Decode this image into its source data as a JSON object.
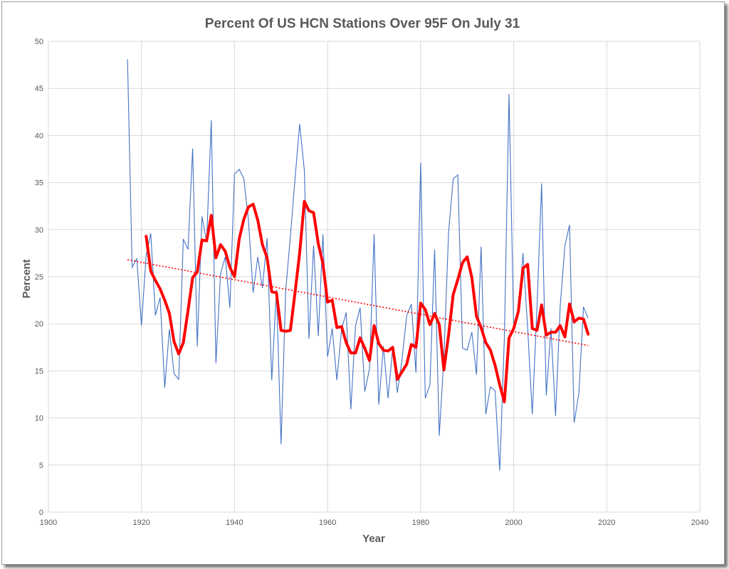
{
  "chart_data": {
    "type": "line",
    "title": "Percent Of US HCN Stations Over 95F On July 31",
    "xlabel": "Year",
    "ylabel": "Percent",
    "xlim": [
      1900,
      2040
    ],
    "ylim": [
      0,
      50
    ],
    "x_ticks": [
      "1900",
      "1920",
      "1940",
      "1960",
      "1980",
      "2000",
      "2020",
      "2040"
    ],
    "y_ticks": [
      "0",
      "5",
      "10",
      "15",
      "20",
      "25",
      "30",
      "35",
      "40",
      "45",
      "50"
    ],
    "grid": true,
    "legend": "none",
    "colors": {
      "annual": "#4472c4",
      "moving_average": "#ff0000",
      "trend": "#ff0000",
      "grid": "#d9d9d9"
    },
    "series": [
      {
        "role": "annual",
        "style": "thin-line",
        "x": [
          1917,
          1918,
          1919,
          1920,
          1921,
          1922,
          1923,
          1924,
          1925,
          1926,
          1927,
          1928,
          1929,
          1930,
          1931,
          1932,
          1933,
          1934,
          1935,
          1936,
          1937,
          1938,
          1939,
          1940,
          1941,
          1942,
          1943,
          1944,
          1945,
          1946,
          1947,
          1948,
          1949,
          1950,
          1951,
          1952,
          1953,
          1954,
          1955,
          1956,
          1957,
          1958,
          1959,
          1960,
          1961,
          1962,
          1963,
          1964,
          1965,
          1966,
          1967,
          1968,
          1969,
          1970,
          1971,
          1972,
          1973,
          1974,
          1975,
          1976,
          1977,
          1978,
          1979,
          1980,
          1981,
          1982,
          1983,
          1984,
          1985,
          1986,
          1987,
          1988,
          1989,
          1990,
          1991,
          1992,
          1993,
          1994,
          1995,
          1996,
          1997,
          1998,
          1999,
          2000,
          2001,
          2002,
          2003,
          2004,
          2005,
          2006,
          2007,
          2008,
          2009,
          2010,
          2011,
          2012,
          2013,
          2014,
          2015,
          2016
        ],
        "values": [
          48.1,
          26.0,
          26.9,
          19.8,
          27.3,
          29.6,
          20.9,
          22.8,
          13.2,
          19.4,
          14.7,
          14.1,
          29.0,
          27.9,
          38.6,
          17.6,
          31.4,
          28.7,
          41.6,
          15.8,
          25.3,
          27.1,
          21.7,
          35.9,
          36.4,
          35.4,
          31.0,
          23.3,
          27.1,
          23.8,
          29.1,
          14.0,
          23.6,
          7.2,
          23.5,
          29.3,
          35.4,
          41.2,
          36.3,
          18.4,
          28.3,
          18.7,
          29.5,
          16.5,
          19.5,
          14.0,
          19.4,
          21.2,
          10.9,
          19.8,
          21.7,
          12.8,
          15.2,
          29.5,
          11.4,
          17.6,
          12.1,
          17.4,
          12.7,
          16.2,
          20.9,
          22.1,
          14.8,
          37.1,
          12.1,
          13.5,
          27.9,
          8.1,
          16.4,
          29.7,
          35.4,
          35.8,
          17.4,
          17.2,
          19.1,
          14.6,
          28.2,
          10.4,
          13.3,
          12.9,
          4.4,
          18.6,
          44.4,
          19.5,
          20.9,
          27.5,
          19.5,
          10.4,
          21.8,
          34.9,
          12.4,
          19.5,
          10.2,
          21.9,
          28.3,
          30.5,
          9.5,
          12.6,
          21.8,
          20.6
        ]
      },
      {
        "role": "moving_average",
        "style": "thick-line",
        "x": [
          1921,
          1922,
          1923,
          1924,
          1925,
          1926,
          1927,
          1928,
          1929,
          1930,
          1931,
          1932,
          1933,
          1934,
          1935,
          1936,
          1937,
          1938,
          1939,
          1940,
          1941,
          1942,
          1943,
          1944,
          1945,
          1946,
          1947,
          1948,
          1949,
          1950,
          1951,
          1952,
          1953,
          1954,
          1955,
          1956,
          1957,
          1958,
          1959,
          1960,
          1961,
          1962,
          1963,
          1964,
          1965,
          1966,
          1967,
          1968,
          1969,
          1970,
          1971,
          1972,
          1973,
          1974,
          1975,
          1976,
          1977,
          1978,
          1979,
          1980,
          1981,
          1982,
          1983,
          1984,
          1985,
          1986,
          1987,
          1988,
          1989,
          1990,
          1991,
          1992,
          1993,
          1994,
          1995,
          1996,
          1997,
          1998,
          1999,
          2000,
          2001,
          2002,
          2003,
          2004,
          2005,
          2006,
          2007,
          2008,
          2009,
          2010,
          2011,
          2012,
          2013,
          2014,
          2015,
          2016
        ],
        "values": [
          29.3,
          25.6,
          24.6,
          23.7,
          22.5,
          21.1,
          18.1,
          16.8,
          18.0,
          21.4,
          24.9,
          25.5,
          28.9,
          28.8,
          31.5,
          27.0,
          28.4,
          27.7,
          26.0,
          25.0,
          29.0,
          31.1,
          32.4,
          32.7,
          31.0,
          28.4,
          27.0,
          23.4,
          23.3,
          19.3,
          19.2,
          19.3,
          23.3,
          27.5,
          33.0,
          32.0,
          31.8,
          28.5,
          26.4,
          22.3,
          22.5,
          19.6,
          19.7,
          18.0,
          16.9,
          16.9,
          18.5,
          17.4,
          16.1,
          19.8,
          17.9,
          17.2,
          17.1,
          17.5,
          14.1,
          14.9,
          15.7,
          17.8,
          17.5,
          22.2,
          21.5,
          19.9,
          21.1,
          19.9,
          15.1,
          18.8,
          23.1,
          24.7,
          26.5,
          27.1,
          24.9,
          20.8,
          19.6,
          18.0,
          17.2,
          15.6,
          13.5,
          11.7,
          18.5,
          19.5,
          21.3,
          25.9,
          26.3,
          19.5,
          19.3,
          22.0,
          18.8,
          19.1,
          19.1,
          19.8,
          18.6,
          22.1,
          20.2,
          20.6,
          20.5,
          18.9
        ]
      },
      {
        "role": "trend",
        "style": "dotted-line",
        "x": [
          1917,
          2016
        ],
        "values": [
          26.8,
          17.7
        ]
      }
    ]
  }
}
